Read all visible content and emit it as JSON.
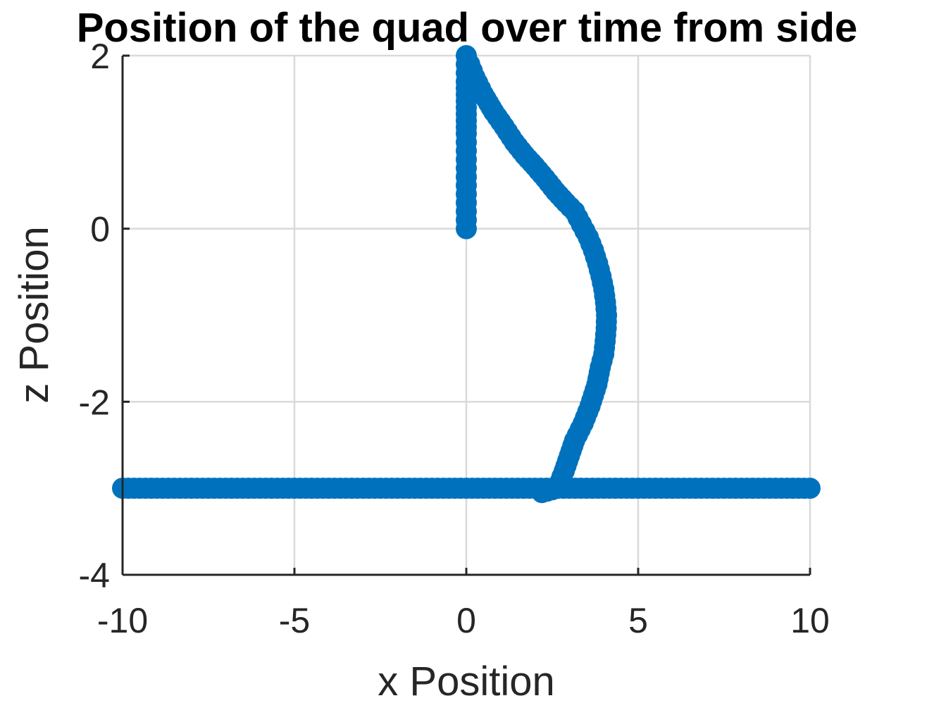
{
  "chart_data": {
    "type": "scatter",
    "title": "Position of the quad over time from side",
    "xlabel": "x Position",
    "ylabel": "z Position",
    "xlim": [
      -10,
      10
    ],
    "ylim": [
      -4,
      2
    ],
    "xticks": [
      -10,
      -5,
      0,
      5,
      10
    ],
    "yticks": [
      -4,
      -2,
      0,
      2
    ],
    "xtick_labels": [
      "-10",
      "-5",
      "0",
      "5",
      "10"
    ],
    "ytick_labels": [
      "-4",
      "-2",
      "0",
      "2"
    ],
    "grid": true,
    "marker": "filled-circle",
    "color": "#0072BD",
    "series": [
      {
        "points": [
          [
            0.0,
            0.0
          ],
          [
            0.0,
            0.1
          ],
          [
            0.0,
            0.2
          ],
          [
            0.0,
            0.3
          ],
          [
            0.0,
            0.4
          ],
          [
            0.0,
            0.5
          ],
          [
            0.0,
            0.6
          ],
          [
            0.0,
            0.7
          ],
          [
            0.0,
            0.8
          ],
          [
            0.0,
            0.9
          ],
          [
            0.0,
            1.0
          ],
          [
            0.0,
            1.1
          ],
          [
            0.0,
            1.25
          ],
          [
            0.0,
            1.4
          ],
          [
            0.0,
            1.55
          ],
          [
            0.0,
            1.7
          ],
          [
            0.0,
            1.8
          ],
          [
            0.0,
            1.9
          ],
          [
            0.0,
            2.0
          ],
          [
            0.1,
            1.9
          ],
          [
            0.25,
            1.75
          ],
          [
            0.5,
            1.55
          ],
          [
            0.8,
            1.35
          ],
          [
            1.1,
            1.18
          ],
          [
            1.4,
            1.0
          ],
          [
            1.7,
            0.85
          ],
          [
            2.0,
            0.72
          ],
          [
            2.3,
            0.58
          ],
          [
            2.6,
            0.43
          ],
          [
            2.9,
            0.3
          ],
          [
            3.15,
            0.2
          ],
          [
            3.35,
            0.05
          ],
          [
            3.55,
            -0.1
          ],
          [
            3.7,
            -0.25
          ],
          [
            3.82,
            -0.4
          ],
          [
            3.92,
            -0.55
          ],
          [
            4.0,
            -0.7
          ],
          [
            4.05,
            -0.85
          ],
          [
            4.08,
            -1.0
          ],
          [
            4.07,
            -1.15
          ],
          [
            4.04,
            -1.3
          ],
          [
            4.0,
            -1.45
          ],
          [
            3.9,
            -1.6
          ],
          [
            3.8,
            -1.8
          ],
          [
            3.6,
            -2.05
          ],
          [
            3.4,
            -2.25
          ],
          [
            3.15,
            -2.45
          ],
          [
            2.85,
            -2.8
          ],
          [
            2.65,
            -3.0
          ],
          [
            2.2,
            -3.05
          ],
          [
            -10.0,
            -3.0
          ],
          [
            -9.5,
            -3.0
          ],
          [
            -9.0,
            -3.0
          ],
          [
            -8.5,
            -3.0
          ],
          [
            -8.0,
            -3.0
          ],
          [
            -7.5,
            -3.0
          ],
          [
            -7.0,
            -3.0
          ],
          [
            -6.5,
            -3.0
          ],
          [
            -6.0,
            -3.0
          ],
          [
            -5.5,
            -3.0
          ],
          [
            -5.0,
            -3.0
          ],
          [
            -4.5,
            -3.0
          ],
          [
            -4.0,
            -3.0
          ],
          [
            -3.5,
            -3.0
          ],
          [
            -3.0,
            -3.0
          ],
          [
            -2.5,
            -3.0
          ],
          [
            -2.0,
            -3.0
          ],
          [
            -1.5,
            -3.0
          ],
          [
            -1.0,
            -3.0
          ],
          [
            -0.5,
            -3.0
          ],
          [
            0.0,
            -3.0
          ],
          [
            0.5,
            -3.0
          ],
          [
            1.0,
            -3.0
          ],
          [
            1.5,
            -3.0
          ],
          [
            2.0,
            -3.0
          ],
          [
            2.5,
            -3.0
          ],
          [
            3.0,
            -3.0
          ],
          [
            3.5,
            -3.0
          ],
          [
            4.0,
            -3.0
          ],
          [
            4.5,
            -3.0
          ],
          [
            5.0,
            -3.0
          ],
          [
            5.5,
            -3.0
          ],
          [
            6.0,
            -3.0
          ],
          [
            6.5,
            -3.0
          ],
          [
            7.0,
            -3.0
          ],
          [
            7.5,
            -3.0
          ],
          [
            8.0,
            -3.0
          ],
          [
            8.5,
            -3.0
          ],
          [
            9.0,
            -3.0
          ],
          [
            9.5,
            -3.0
          ],
          [
            10.0,
            -3.0
          ]
        ]
      }
    ]
  }
}
